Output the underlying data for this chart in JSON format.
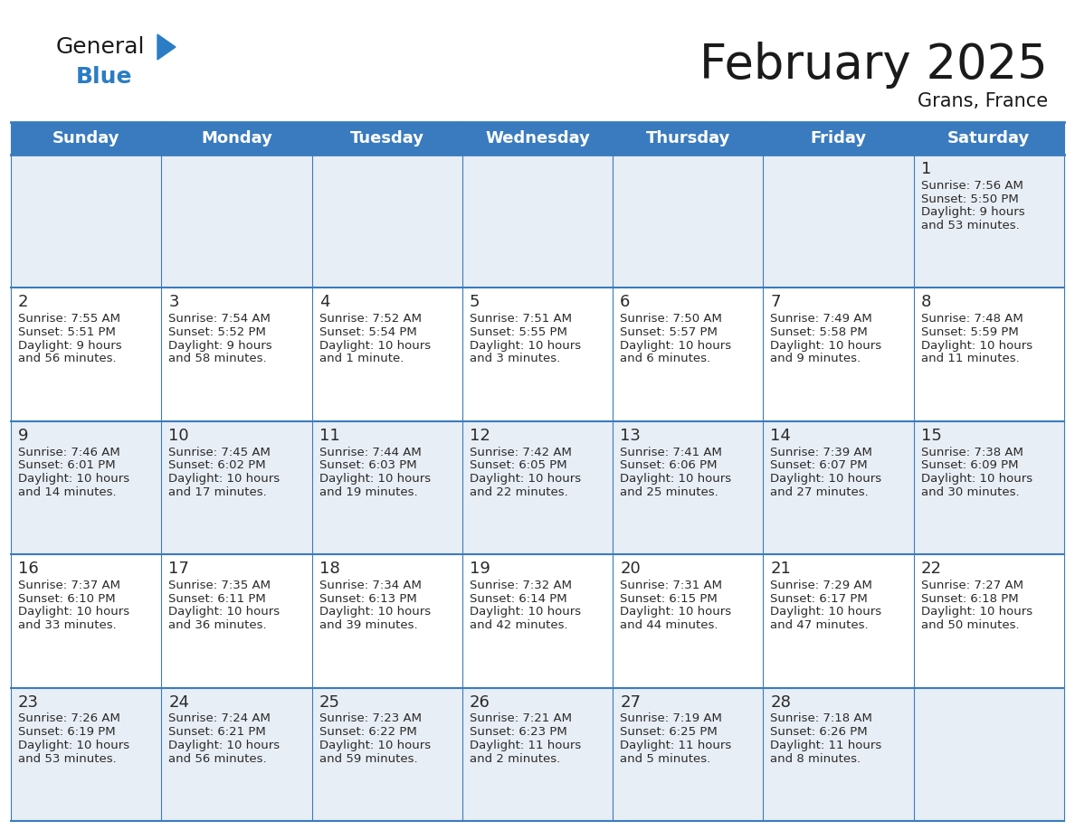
{
  "title": "February 2025",
  "subtitle": "Grans, France",
  "header_color": "#3a7bbf",
  "header_text_color": "#ffffff",
  "grid_line_color": "#3a7bbf",
  "day_headers": [
    "Sunday",
    "Monday",
    "Tuesday",
    "Wednesday",
    "Thursday",
    "Friday",
    "Saturday"
  ],
  "days": [
    {
      "day": 1,
      "col": 6,
      "row": 0,
      "sunrise": "7:56 AM",
      "sunset": "5:50 PM",
      "daylight_line1": "Daylight: 9 hours",
      "daylight_line2": "and 53 minutes."
    },
    {
      "day": 2,
      "col": 0,
      "row": 1,
      "sunrise": "7:55 AM",
      "sunset": "5:51 PM",
      "daylight_line1": "Daylight: 9 hours",
      "daylight_line2": "and 56 minutes."
    },
    {
      "day": 3,
      "col": 1,
      "row": 1,
      "sunrise": "7:54 AM",
      "sunset": "5:52 PM",
      "daylight_line1": "Daylight: 9 hours",
      "daylight_line2": "and 58 minutes."
    },
    {
      "day": 4,
      "col": 2,
      "row": 1,
      "sunrise": "7:52 AM",
      "sunset": "5:54 PM",
      "daylight_line1": "Daylight: 10 hours",
      "daylight_line2": "and 1 minute."
    },
    {
      "day": 5,
      "col": 3,
      "row": 1,
      "sunrise": "7:51 AM",
      "sunset": "5:55 PM",
      "daylight_line1": "Daylight: 10 hours",
      "daylight_line2": "and 3 minutes."
    },
    {
      "day": 6,
      "col": 4,
      "row": 1,
      "sunrise": "7:50 AM",
      "sunset": "5:57 PM",
      "daylight_line1": "Daylight: 10 hours",
      "daylight_line2": "and 6 minutes."
    },
    {
      "day": 7,
      "col": 5,
      "row": 1,
      "sunrise": "7:49 AM",
      "sunset": "5:58 PM",
      "daylight_line1": "Daylight: 10 hours",
      "daylight_line2": "and 9 minutes."
    },
    {
      "day": 8,
      "col": 6,
      "row": 1,
      "sunrise": "7:48 AM",
      "sunset": "5:59 PM",
      "daylight_line1": "Daylight: 10 hours",
      "daylight_line2": "and 11 minutes."
    },
    {
      "day": 9,
      "col": 0,
      "row": 2,
      "sunrise": "7:46 AM",
      "sunset": "6:01 PM",
      "daylight_line1": "Daylight: 10 hours",
      "daylight_line2": "and 14 minutes."
    },
    {
      "day": 10,
      "col": 1,
      "row": 2,
      "sunrise": "7:45 AM",
      "sunset": "6:02 PM",
      "daylight_line1": "Daylight: 10 hours",
      "daylight_line2": "and 17 minutes."
    },
    {
      "day": 11,
      "col": 2,
      "row": 2,
      "sunrise": "7:44 AM",
      "sunset": "6:03 PM",
      "daylight_line1": "Daylight: 10 hours",
      "daylight_line2": "and 19 minutes."
    },
    {
      "day": 12,
      "col": 3,
      "row": 2,
      "sunrise": "7:42 AM",
      "sunset": "6:05 PM",
      "daylight_line1": "Daylight: 10 hours",
      "daylight_line2": "and 22 minutes."
    },
    {
      "day": 13,
      "col": 4,
      "row": 2,
      "sunrise": "7:41 AM",
      "sunset": "6:06 PM",
      "daylight_line1": "Daylight: 10 hours",
      "daylight_line2": "and 25 minutes."
    },
    {
      "day": 14,
      "col": 5,
      "row": 2,
      "sunrise": "7:39 AM",
      "sunset": "6:07 PM",
      "daylight_line1": "Daylight: 10 hours",
      "daylight_line2": "and 27 minutes."
    },
    {
      "day": 15,
      "col": 6,
      "row": 2,
      "sunrise": "7:38 AM",
      "sunset": "6:09 PM",
      "daylight_line1": "Daylight: 10 hours",
      "daylight_line2": "and 30 minutes."
    },
    {
      "day": 16,
      "col": 0,
      "row": 3,
      "sunrise": "7:37 AM",
      "sunset": "6:10 PM",
      "daylight_line1": "Daylight: 10 hours",
      "daylight_line2": "and 33 minutes."
    },
    {
      "day": 17,
      "col": 1,
      "row": 3,
      "sunrise": "7:35 AM",
      "sunset": "6:11 PM",
      "daylight_line1": "Daylight: 10 hours",
      "daylight_line2": "and 36 minutes."
    },
    {
      "day": 18,
      "col": 2,
      "row": 3,
      "sunrise": "7:34 AM",
      "sunset": "6:13 PM",
      "daylight_line1": "Daylight: 10 hours",
      "daylight_line2": "and 39 minutes."
    },
    {
      "day": 19,
      "col": 3,
      "row": 3,
      "sunrise": "7:32 AM",
      "sunset": "6:14 PM",
      "daylight_line1": "Daylight: 10 hours",
      "daylight_line2": "and 42 minutes."
    },
    {
      "day": 20,
      "col": 4,
      "row": 3,
      "sunrise": "7:31 AM",
      "sunset": "6:15 PM",
      "daylight_line1": "Daylight: 10 hours",
      "daylight_line2": "and 44 minutes."
    },
    {
      "day": 21,
      "col": 5,
      "row": 3,
      "sunrise": "7:29 AM",
      "sunset": "6:17 PM",
      "daylight_line1": "Daylight: 10 hours",
      "daylight_line2": "and 47 minutes."
    },
    {
      "day": 22,
      "col": 6,
      "row": 3,
      "sunrise": "7:27 AM",
      "sunset": "6:18 PM",
      "daylight_line1": "Daylight: 10 hours",
      "daylight_line2": "and 50 minutes."
    },
    {
      "day": 23,
      "col": 0,
      "row": 4,
      "sunrise": "7:26 AM",
      "sunset": "6:19 PM",
      "daylight_line1": "Daylight: 10 hours",
      "daylight_line2": "and 53 minutes."
    },
    {
      "day": 24,
      "col": 1,
      "row": 4,
      "sunrise": "7:24 AM",
      "sunset": "6:21 PM",
      "daylight_line1": "Daylight: 10 hours",
      "daylight_line2": "and 56 minutes."
    },
    {
      "day": 25,
      "col": 2,
      "row": 4,
      "sunrise": "7:23 AM",
      "sunset": "6:22 PM",
      "daylight_line1": "Daylight: 10 hours",
      "daylight_line2": "and 59 minutes."
    },
    {
      "day": 26,
      "col": 3,
      "row": 4,
      "sunrise": "7:21 AM",
      "sunset": "6:23 PM",
      "daylight_line1": "Daylight: 11 hours",
      "daylight_line2": "and 2 minutes."
    },
    {
      "day": 27,
      "col": 4,
      "row": 4,
      "sunrise": "7:19 AM",
      "sunset": "6:25 PM",
      "daylight_line1": "Daylight: 11 hours",
      "daylight_line2": "and 5 minutes."
    },
    {
      "day": 28,
      "col": 5,
      "row": 4,
      "sunrise": "7:18 AM",
      "sunset": "6:26 PM",
      "daylight_line1": "Daylight: 11 hours",
      "daylight_line2": "and 8 minutes."
    }
  ],
  "num_rows": 5,
  "logo_color_general": "#1a1a1a",
  "logo_color_blue": "#2a7dc4",
  "logo_triangle_color": "#2a7dc4",
  "title_fontsize": 38,
  "subtitle_fontsize": 15,
  "header_fontsize": 13,
  "day_num_fontsize": 13,
  "cell_text_fontsize": 9.5,
  "cell_bg_alt": "#e8eef5",
  "cell_bg_white": "#ffffff"
}
